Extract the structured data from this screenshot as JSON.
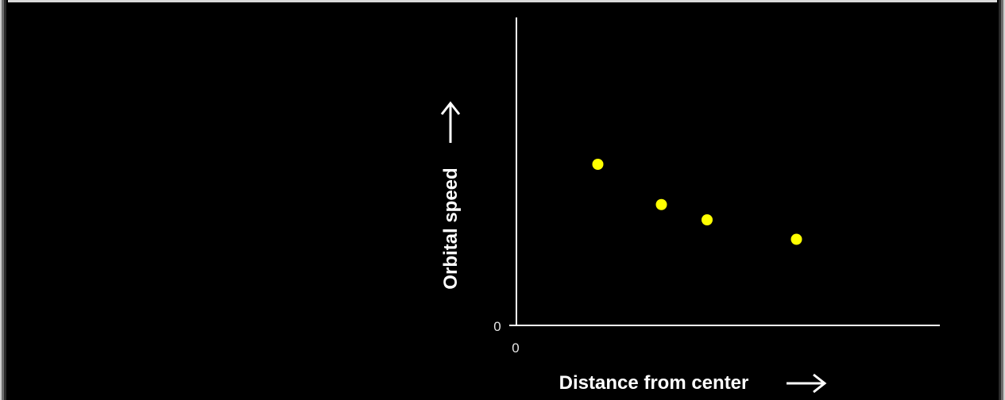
{
  "chart_data": {
    "type": "scatter",
    "xlabel": "Distance from center",
    "ylabel": "Orbital speed",
    "x_tick_labels": [
      "0"
    ],
    "y_tick_labels": [
      "0"
    ],
    "xlim": [
      0,
      10
    ],
    "ylim": [
      0,
      10
    ],
    "series": [
      {
        "points": [
          {
            "x": 2.05,
            "y": 5.8
          },
          {
            "x": 3.65,
            "y": 4.35
          },
          {
            "x": 4.8,
            "y": 3.8
          },
          {
            "x": 7.05,
            "y": 3.1
          }
        ]
      }
    ],
    "marker_color": "#ffff00",
    "axis_color": "#ffffff",
    "background_color": "#000000",
    "grid": false,
    "legend": false
  }
}
